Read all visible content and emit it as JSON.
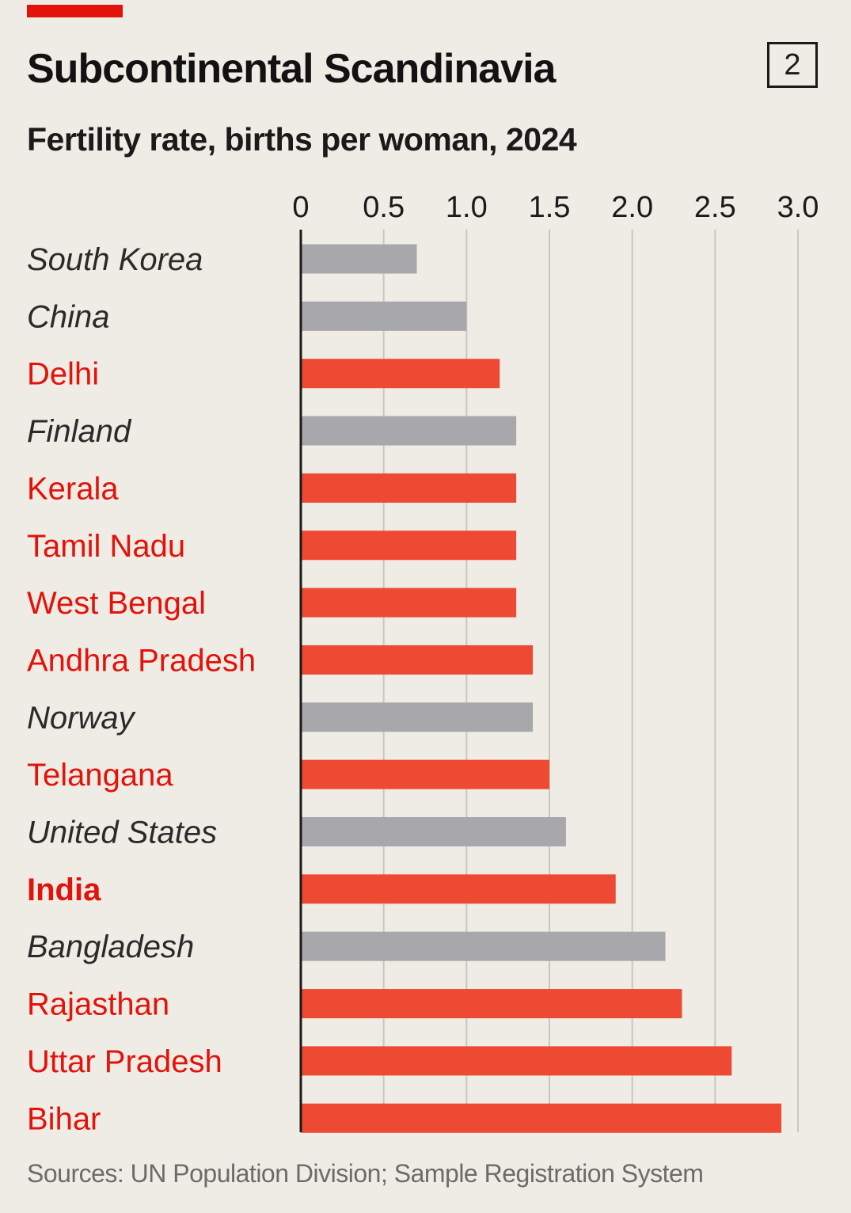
{
  "header": {
    "title": "Subcontinental Scandinavia",
    "subtitle": "Fertility rate, births per woman, 2024",
    "chart_number": "2"
  },
  "footer": {
    "source": "Sources: UN Population Division; Sample Registration System"
  },
  "colors": {
    "background": "#eeece4",
    "indian_region": "#ee4a33",
    "comparison_country": "#a8a8ac",
    "indian_label": "#e3120b",
    "comparison_label": "#2a2a2a",
    "gridline": "#c8c7c1",
    "axis": "#1a1a1a",
    "tag": "#e3120b"
  },
  "chart_data": {
    "type": "bar",
    "orientation": "horizontal",
    "title": "Subcontinental Scandinavia",
    "subtitle": "Fertility rate, births per woman, 2024",
    "xlim": [
      0,
      3.0
    ],
    "xticks": [
      0,
      0.5,
      1.0,
      1.5,
      2.0,
      2.5,
      3.0
    ],
    "xtick_labels": [
      "0",
      "0.5",
      "1.0",
      "1.5",
      "2.0",
      "2.5",
      "3.0"
    ],
    "xaxis_position": "top",
    "grid": true,
    "categories": [
      "South Korea",
      "China",
      "Delhi",
      "Finland",
      "Kerala",
      "Tamil Nadu",
      "West Bengal",
      "Andhra Pradesh",
      "Norway",
      "Telangana",
      "United States",
      "India",
      "Bangladesh",
      "Rajasthan",
      "Uttar Pradesh",
      "Bihar"
    ],
    "values": [
      0.7,
      1.0,
      1.2,
      1.3,
      1.3,
      1.3,
      1.3,
      1.4,
      1.4,
      1.5,
      1.6,
      1.9,
      2.2,
      2.3,
      2.6,
      2.9
    ],
    "groups": [
      "country",
      "country",
      "india",
      "country",
      "india",
      "india",
      "india",
      "india",
      "country",
      "india",
      "country",
      "india_total",
      "country",
      "india",
      "india",
      "india"
    ]
  }
}
